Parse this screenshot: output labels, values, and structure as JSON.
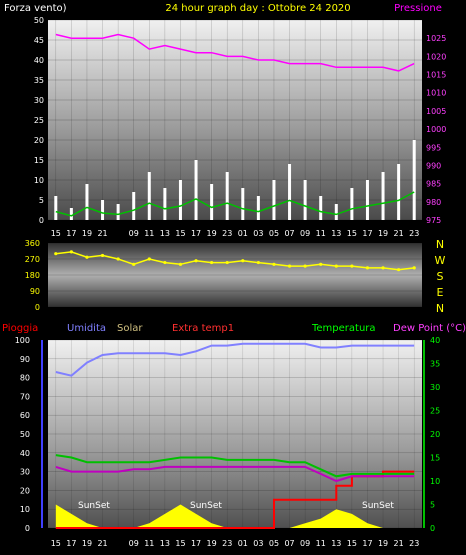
{
  "header": {
    "left_title": "Forza vento)",
    "center_title": "24 hour graph day : Ottobre 24 2020",
    "right_title": "Pressione"
  },
  "legend": {
    "pioggia": "Pioggia",
    "umidita": "Umidita",
    "solar": "Solar",
    "extra_temp": "Extra temp1",
    "temperatura": "Temperatura",
    "dew_point": "Dew Point (°C)",
    "sunset_label": "SunSet"
  },
  "colors": {
    "wind": "#ffffff",
    "gust": "#d0d0d0",
    "wind_avg": "#00c000",
    "pressure": "#ff00ff",
    "direction": "#ffff00",
    "rain": "#ff0000",
    "humidity": "#8080ff",
    "solar": "#ffff00",
    "temperature": "#00c000",
    "dew_point": "#c000c0",
    "axis_left": "#4040ff",
    "axis_right": "#00c000"
  },
  "chart_data": [
    {
      "type": "line",
      "panel": "wind_pressure",
      "x_ticks": [
        "15",
        "17",
        "19",
        "21",
        "",
        "09",
        "11",
        "13",
        "15",
        "17",
        "19",
        "23",
        "01",
        "03",
        "05",
        "07",
        "09",
        "11",
        "13",
        "15",
        "17",
        "19",
        "21",
        "23"
      ],
      "y_left_ticks": [
        "0",
        "5",
        "10",
        "15",
        "20",
        "25",
        "30",
        "35",
        "40",
        "45",
        "50"
      ],
      "y_right_ticks": [
        "975",
        "980",
        "985",
        "990",
        "995",
        "1000",
        "1005",
        "1010",
        "1015",
        "1020",
        "1025"
      ],
      "ylim_left": [
        0,
        50
      ],
      "ylim_right": [
        975,
        1030
      ],
      "series": [
        {
          "name": "Pressione",
          "axis": "right",
          "values": [
            1026,
            1025,
            1025,
            1025,
            1026,
            1025,
            1022,
            1023,
            1022,
            1021,
            1021,
            1020,
            1020,
            1019,
            1019,
            1018,
            1018,
            1018,
            1017,
            1017,
            1017,
            1017,
            1016,
            1018
          ]
        },
        {
          "name": "Forza vento",
          "axis": "left",
          "values": [
            6,
            3,
            9,
            5,
            4,
            7,
            12,
            8,
            10,
            15,
            9,
            12,
            8,
            6,
            10,
            14,
            10,
            6,
            4,
            8,
            10,
            12,
            14,
            20
          ]
        }
      ]
    },
    {
      "type": "line",
      "panel": "wind_direction",
      "y_ticks": [
        "0",
        "90",
        "180",
        "270",
        "360"
      ],
      "ylim": [
        0,
        360
      ],
      "compass": [
        "N",
        "W",
        "S",
        "E",
        "N"
      ],
      "series": [
        {
          "name": "Direzione",
          "values": [
            300,
            310,
            280,
            290,
            270,
            240,
            270,
            250,
            240,
            260,
            250,
            250,
            260,
            250,
            240,
            230,
            230,
            240,
            230,
            230,
            220,
            220,
            210,
            220
          ]
        }
      ]
    },
    {
      "type": "line",
      "panel": "temp_humidity",
      "x_ticks": [
        "15",
        "17",
        "19",
        "21",
        "",
        "09",
        "11",
        "13",
        "15",
        "17",
        "19",
        "23",
        "01",
        "03",
        "05",
        "07",
        "09",
        "11",
        "13",
        "15",
        "17",
        "19",
        "21",
        "23"
      ],
      "y_left_ticks": [
        "0",
        "10",
        "20",
        "30",
        "40",
        "50",
        "60",
        "70",
        "80",
        "90",
        "100"
      ],
      "y_right_ticks": [
        "0",
        "5",
        "10",
        "15",
        "20",
        "25",
        "30",
        "35",
        "40"
      ],
      "ylim_left": [
        0,
        100
      ],
      "ylim_right": [
        0,
        40
      ],
      "series": [
        {
          "name": "Umidita",
          "axis": "left",
          "values": [
            83,
            81,
            88,
            92,
            93,
            93,
            93,
            93,
            92,
            94,
            97,
            97,
            98,
            98,
            98,
            98,
            98,
            96,
            96,
            97,
            97,
            97,
            97,
            97
          ]
        },
        {
          "name": "Temperatura",
          "axis": "right",
          "values": [
            15.5,
            15,
            14,
            14,
            14,
            14,
            14,
            14.5,
            15,
            15,
            15,
            14.5,
            14.5,
            14.5,
            14.5,
            14,
            14,
            12.5,
            11,
            11.5,
            11.5,
            11.5,
            11.5,
            11.5
          ]
        },
        {
          "name": "Dew Point (°C)",
          "axis": "right",
          "values": [
            13,
            12,
            12,
            12,
            12,
            12.5,
            12.5,
            13,
            13,
            13,
            13,
            13,
            13,
            13,
            13,
            13,
            13,
            11.5,
            10,
            11,
            11,
            11,
            11,
            11
          ]
        },
        {
          "name": "Pioggia",
          "axis": "right",
          "values": [
            0,
            0,
            0,
            0,
            0,
            0,
            0,
            0,
            0,
            0,
            0,
            0,
            0,
            0,
            6,
            6,
            6,
            6,
            9,
            11,
            11,
            12,
            12,
            12
          ]
        },
        {
          "name": "Solar",
          "axis": "right",
          "values": [
            5,
            3,
            1,
            0,
            0,
            0,
            1,
            3,
            5,
            3,
            1,
            0,
            0,
            0,
            0,
            0,
            1,
            2,
            4,
            3,
            1,
            0,
            0,
            0
          ]
        }
      ]
    }
  ]
}
